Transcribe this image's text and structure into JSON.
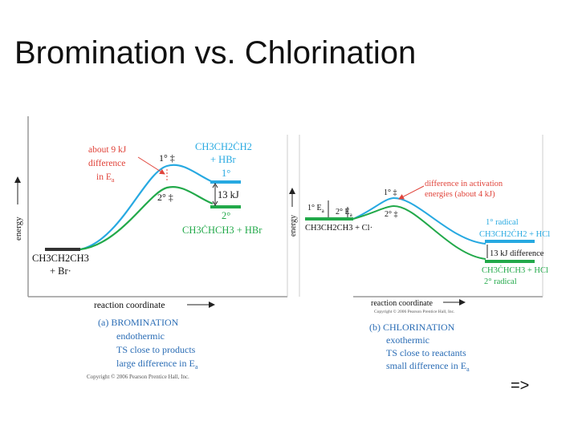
{
  "slide": {
    "title": "Bromination vs. Chlorination",
    "next_label": "=>"
  },
  "colors": {
    "blue": "#27a9e1",
    "green": "#22a94a",
    "red": "#e0433a",
    "axis": "#999999",
    "text": "#111111"
  },
  "bromination": {
    "y_axis_label": "energy",
    "x_axis_label": "reaction coordinate",
    "ea_note_1": "about 9 kJ",
    "ea_note_2": "difference",
    "ea_note_3": "in E",
    "ea_note_sub": "a",
    "ts1_label": "1° ‡",
    "ts2_label": "2° ‡",
    "prod1_formula": "CH3CH2ĊH2",
    "prod1_formula_b": "+ HBr",
    "prod1_label": "1°",
    "diff_label": "13 kJ",
    "prod2_label": "2°",
    "prod2_formula": "CH3ĊHCH3 + HBr",
    "react_formula": "CH3CH2CH3",
    "react_formula_b": "+ Br·",
    "caption_title": "(a) BROMINATION",
    "caption_1": "endothermic",
    "caption_2": "TS close to products",
    "caption_3": "large difference in E",
    "caption_3_sub": "a",
    "copyright": "Copyright © 2006 Pearson Prentice Hall, Inc."
  },
  "chlorination": {
    "y_axis_label": "energy",
    "x_axis_label": "reaction coordinate",
    "copyright_top": "Copyright © 2006 Pearson Prentice Hall, Inc.",
    "ts1_label": "1° ‡",
    "ts2_label": "2° ‡",
    "ea1_label": "1° E",
    "ea2_label": "2° E",
    "ea_sub": "a",
    "note_1": "difference in activation",
    "note_2": "energies (about 4 kJ)",
    "react_formula": "CH3CH2CH3 + Cl·",
    "prod1_label": "1° radical",
    "prod1_formula": "CH3CH2ĊH2 + HCl",
    "diff_label": "13 kJ difference",
    "prod2_formula": "CH3ĊHCH3 + HCl",
    "prod2_label": "2° radical",
    "caption_title": "(b) CHLORINATION",
    "caption_1": "exothermic",
    "caption_2": "TS close to reactants",
    "caption_3": "small difference in E",
    "caption_3_sub": "a"
  }
}
